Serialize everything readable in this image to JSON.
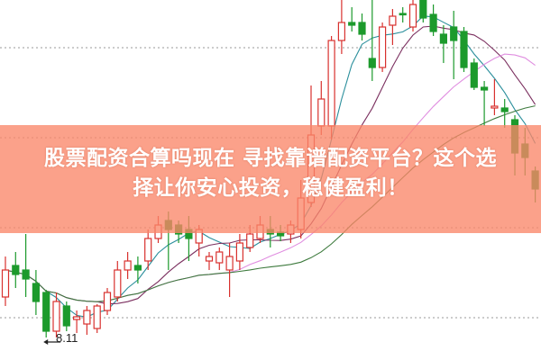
{
  "headline": {
    "line1": "股票配资合算吗现在 寻找靠谱配资平台？这个选",
    "line2": "择让你安心投资，稳健盈利！"
  },
  "colors": {
    "up": "#d8312e",
    "down": "#1c9a2c",
    "banner": "#fa8769",
    "grid": "#999999",
    "ma": [
      "#2b8f9c",
      "#7b2f5f",
      "#e08ee0",
      "#3d7a3d"
    ]
  },
  "chart_data": {
    "type": "candlestick",
    "annotations": [
      {
        "text": "8.11",
        "marks": "low",
        "candle": 5
      }
    ],
    "grid": "horizontal dotted",
    "moving_averages": [
      5,
      10,
      20,
      30
    ],
    "candles": [
      [
        8.56,
        8.86,
        9.01,
        8.46
      ],
      [
        8.91,
        8.81,
        9.06,
        8.66
      ],
      [
        8.86,
        8.76,
        9.26,
        8.56
      ],
      [
        8.71,
        8.51,
        8.86,
        8.36
      ],
      [
        8.61,
        8.18,
        8.64,
        8.11
      ],
      [
        8.18,
        8.51,
        8.61,
        8.11
      ],
      [
        8.46,
        8.24,
        8.51,
        8.18
      ],
      [
        8.31,
        8.34,
        8.41,
        8.16
      ],
      [
        8.26,
        8.41,
        8.46,
        8.14
      ],
      [
        8.21,
        8.46,
        8.48,
        8.16
      ],
      [
        8.41,
        8.61,
        8.66,
        8.36
      ],
      [
        8.56,
        8.86,
        8.96,
        8.51
      ],
      [
        8.86,
        8.96,
        9.06,
        8.76
      ],
      [
        8.91,
        8.86,
        9.01,
        8.71
      ],
      [
        8.96,
        9.21,
        9.31,
        8.86
      ],
      [
        9.21,
        9.36,
        9.46,
        9.16
      ],
      [
        9.41,
        9.31,
        9.51,
        8.86
      ],
      [
        9.36,
        9.26,
        9.41,
        9.16
      ],
      [
        9.31,
        9.21,
        9.46,
        8.96
      ],
      [
        9.16,
        9.31,
        9.36,
        9.01
      ],
      [
        8.96,
        9.01,
        9.06,
        8.86
      ],
      [
        8.94,
        9.06,
        9.11,
        8.86
      ],
      [
        8.86,
        9.01,
        9.16,
        8.56
      ],
      [
        8.96,
        9.16,
        9.26,
        8.86
      ],
      [
        9.11,
        9.26,
        9.36,
        9.06
      ],
      [
        9.21,
        9.36,
        9.46,
        9.16
      ],
      [
        9.31,
        9.26,
        9.46,
        9.11
      ],
      [
        9.28,
        9.24,
        9.36,
        9.18
      ],
      [
        9.26,
        9.36,
        9.41,
        9.16
      ],
      [
        9.31,
        9.66,
        9.86,
        9.21
      ],
      [
        9.61,
        10.36,
        10.91,
        9.56
      ],
      [
        10.46,
        10.76,
        10.96,
        10.36
      ],
      [
        10.46,
        11.41,
        11.46,
        10.31
      ],
      [
        11.41,
        11.61,
        11.86,
        11.26
      ],
      [
        11.61,
        11.58,
        11.78,
        11.51
      ],
      [
        11.61,
        11.48,
        11.71,
        11.41
      ],
      [
        11.21,
        11.11,
        11.86,
        10.96
      ],
      [
        11.11,
        11.56,
        11.61,
        11.06
      ],
      [
        11.58,
        11.68,
        11.76,
        11.36
      ],
      [
        11.71,
        11.7,
        11.78,
        11.61
      ],
      [
        11.56,
        11.81,
        11.86,
        11.51
      ],
      [
        11.86,
        11.66,
        11.86,
        11.61
      ],
      [
        11.7,
        11.51,
        11.81,
        11.46
      ],
      [
        11.48,
        11.38,
        11.58,
        11.16
      ],
      [
        11.56,
        11.41,
        11.74,
        10.98
      ],
      [
        11.51,
        11.11,
        11.56,
        11.06
      ],
      [
        11.16,
        10.89,
        11.21,
        10.86
      ],
      [
        10.89,
        10.86,
        10.96,
        10.46
      ],
      [
        10.66,
        10.68,
        10.98,
        10.58
      ],
      [
        10.66,
        10.62,
        10.76,
        10.44
      ],
      [
        10.53,
        10.16,
        10.58,
        9.91
      ],
      [
        10.26,
        10.11,
        10.44,
        9.91
      ],
      [
        9.96,
        9.76,
        10.01,
        9.61
      ]
    ]
  }
}
